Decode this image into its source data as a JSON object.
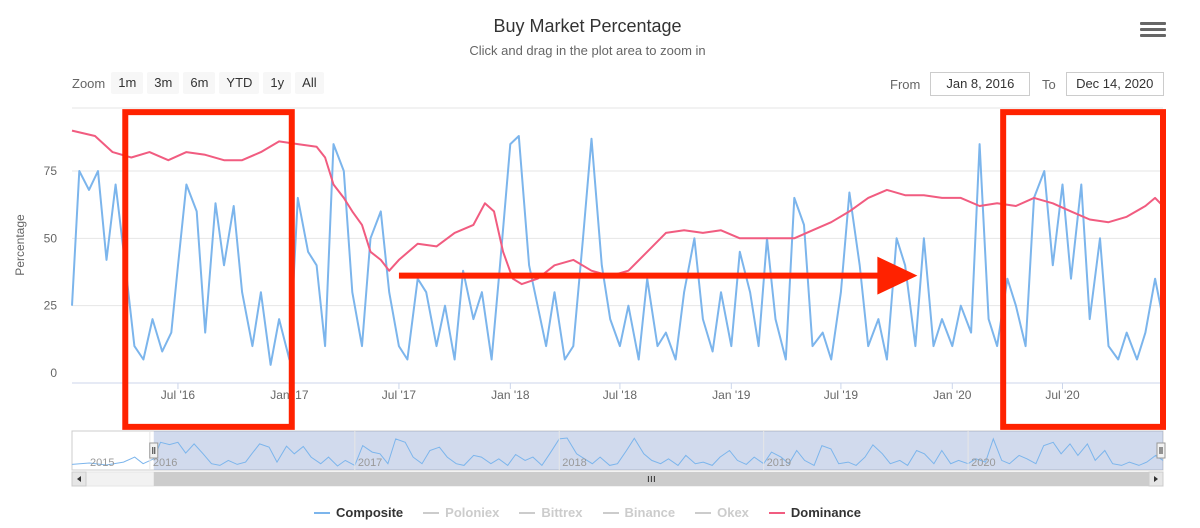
{
  "header": {
    "title": "Buy Market Percentage",
    "subtitle": "Click and drag in the plot area to zoom in"
  },
  "toolbar": {
    "zoom_label": "Zoom",
    "zoom_buttons": [
      "1m",
      "3m",
      "6m",
      "YTD",
      "1y",
      "All"
    ],
    "from_label": "From",
    "from_value": "Jan 8, 2016",
    "to_label": "To",
    "to_value": "Dec 14, 2020"
  },
  "chart_data": {
    "type": "line",
    "title": "Buy Market Percentage",
    "subtitle": "Click and drag in the plot area to zoom in",
    "ylabel": "Percentage",
    "xlabel": "",
    "ylim": [
      0,
      95
    ],
    "yticks": [
      0,
      25,
      50,
      75
    ],
    "xlim": [
      "2016-01-08",
      "2020-12-14"
    ],
    "xticks": [
      {
        "date": "2016-07-01",
        "label": "Jul '16"
      },
      {
        "date": "2017-01-01",
        "label": "Jan '17"
      },
      {
        "date": "2017-07-01",
        "label": "Jul '17"
      },
      {
        "date": "2018-01-01",
        "label": "Jan '18"
      },
      {
        "date": "2018-07-01",
        "label": "Jul '18"
      },
      {
        "date": "2019-01-01",
        "label": "Jan '19"
      },
      {
        "date": "2019-07-01",
        "label": "Jul '19"
      },
      {
        "date": "2020-01-01",
        "label": "Jan '20"
      },
      {
        "date": "2020-07-01",
        "label": "Jul '20"
      }
    ],
    "grid": true,
    "legend_position": "bottom",
    "series": [
      {
        "name": "Composite",
        "color": "#7cb5ec",
        "points": [
          [
            "2016-01-08",
            25
          ],
          [
            "2016-01-20",
            75
          ],
          [
            "2016-02-05",
            68
          ],
          [
            "2016-02-20",
            75
          ],
          [
            "2016-03-05",
            42
          ],
          [
            "2016-03-20",
            70
          ],
          [
            "2016-04-05",
            40
          ],
          [
            "2016-04-20",
            10
          ],
          [
            "2016-05-05",
            5
          ],
          [
            "2016-05-20",
            20
          ],
          [
            "2016-06-05",
            8
          ],
          [
            "2016-06-20",
            15
          ],
          [
            "2016-07-01",
            40
          ],
          [
            "2016-07-15",
            70
          ],
          [
            "2016-08-01",
            60
          ],
          [
            "2016-08-15",
            15
          ],
          [
            "2016-09-01",
            63
          ],
          [
            "2016-09-15",
            40
          ],
          [
            "2016-10-01",
            62
          ],
          [
            "2016-10-15",
            30
          ],
          [
            "2016-11-01",
            10
          ],
          [
            "2016-11-15",
            30
          ],
          [
            "2016-12-01",
            3
          ],
          [
            "2016-12-15",
            20
          ],
          [
            "2017-01-01",
            5
          ],
          [
            "2017-01-15",
            65
          ],
          [
            "2017-02-01",
            45
          ],
          [
            "2017-02-15",
            40
          ],
          [
            "2017-03-01",
            10
          ],
          [
            "2017-03-15",
            85
          ],
          [
            "2017-04-01",
            75
          ],
          [
            "2017-04-15",
            30
          ],
          [
            "2017-05-01",
            10
          ],
          [
            "2017-05-15",
            50
          ],
          [
            "2017-06-01",
            60
          ],
          [
            "2017-06-15",
            30
          ],
          [
            "2017-07-01",
            10
          ],
          [
            "2017-07-15",
            5
          ],
          [
            "2017-08-01",
            35
          ],
          [
            "2017-08-15",
            30
          ],
          [
            "2017-09-01",
            10
          ],
          [
            "2017-09-15",
            25
          ],
          [
            "2017-10-01",
            5
          ],
          [
            "2017-10-15",
            38
          ],
          [
            "2017-11-01",
            20
          ],
          [
            "2017-11-15",
            30
          ],
          [
            "2017-12-01",
            5
          ],
          [
            "2017-12-15",
            40
          ],
          [
            "2018-01-01",
            85
          ],
          [
            "2018-01-15",
            88
          ],
          [
            "2018-02-01",
            40
          ],
          [
            "2018-02-15",
            25
          ],
          [
            "2018-03-01",
            10
          ],
          [
            "2018-03-15",
            30
          ],
          [
            "2018-04-01",
            5
          ],
          [
            "2018-04-15",
            10
          ],
          [
            "2018-05-01",
            50
          ],
          [
            "2018-05-15",
            87
          ],
          [
            "2018-06-01",
            40
          ],
          [
            "2018-06-15",
            20
          ],
          [
            "2018-07-01",
            10
          ],
          [
            "2018-07-15",
            25
          ],
          [
            "2018-08-01",
            5
          ],
          [
            "2018-08-15",
            35
          ],
          [
            "2018-09-01",
            10
          ],
          [
            "2018-09-15",
            15
          ],
          [
            "2018-10-01",
            5
          ],
          [
            "2018-10-15",
            30
          ],
          [
            "2018-11-01",
            50
          ],
          [
            "2018-11-15",
            20
          ],
          [
            "2018-12-01",
            8
          ],
          [
            "2018-12-15",
            30
          ],
          [
            "2019-01-01",
            10
          ],
          [
            "2019-01-15",
            45
          ],
          [
            "2019-02-01",
            30
          ],
          [
            "2019-02-15",
            10
          ],
          [
            "2019-03-01",
            50
          ],
          [
            "2019-03-15",
            20
          ],
          [
            "2019-04-01",
            5
          ],
          [
            "2019-04-15",
            65
          ],
          [
            "2019-05-01",
            55
          ],
          [
            "2019-05-15",
            10
          ],
          [
            "2019-06-01",
            15
          ],
          [
            "2019-06-15",
            5
          ],
          [
            "2019-07-01",
            30
          ],
          [
            "2019-07-15",
            67
          ],
          [
            "2019-08-01",
            40
          ],
          [
            "2019-08-15",
            10
          ],
          [
            "2019-09-01",
            20
          ],
          [
            "2019-09-15",
            5
          ],
          [
            "2019-10-01",
            50
          ],
          [
            "2019-10-15",
            40
          ],
          [
            "2019-11-01",
            10
          ],
          [
            "2019-11-15",
            50
          ],
          [
            "2019-12-01",
            10
          ],
          [
            "2019-12-15",
            20
          ],
          [
            "2020-01-01",
            10
          ],
          [
            "2020-01-15",
            25
          ],
          [
            "2020-02-01",
            15
          ],
          [
            "2020-02-15",
            85
          ],
          [
            "2020-03-01",
            20
          ],
          [
            "2020-03-15",
            10
          ],
          [
            "2020-04-01",
            35
          ],
          [
            "2020-04-15",
            25
          ],
          [
            "2020-05-01",
            10
          ],
          [
            "2020-05-15",
            65
          ],
          [
            "2020-06-01",
            75
          ],
          [
            "2020-06-15",
            40
          ],
          [
            "2020-07-01",
            70
          ],
          [
            "2020-07-15",
            35
          ],
          [
            "2020-08-01",
            70
          ],
          [
            "2020-08-15",
            20
          ],
          [
            "2020-09-01",
            50
          ],
          [
            "2020-09-15",
            10
          ],
          [
            "2020-10-01",
            5
          ],
          [
            "2020-10-15",
            15
          ],
          [
            "2020-11-01",
            5
          ],
          [
            "2020-11-15",
            15
          ],
          [
            "2020-12-01",
            35
          ],
          [
            "2020-12-14",
            20
          ]
        ]
      },
      {
        "name": "Poloniex",
        "color": "#cccccc",
        "hidden": true,
        "points": []
      },
      {
        "name": "Bittrex",
        "color": "#cccccc",
        "hidden": true,
        "points": []
      },
      {
        "name": "Binance",
        "color": "#cccccc",
        "hidden": true,
        "points": []
      },
      {
        "name": "Okex",
        "color": "#cccccc",
        "hidden": true,
        "points": []
      },
      {
        "name": "Dominance",
        "color": "#f15c80",
        "points": [
          [
            "2016-01-08",
            90
          ],
          [
            "2016-02-15",
            88
          ],
          [
            "2016-03-15",
            82
          ],
          [
            "2016-04-15",
            80
          ],
          [
            "2016-05-15",
            82
          ],
          [
            "2016-06-15",
            79
          ],
          [
            "2016-07-15",
            82
          ],
          [
            "2016-08-15",
            81
          ],
          [
            "2016-09-15",
            79
          ],
          [
            "2016-10-15",
            79
          ],
          [
            "2016-11-15",
            82
          ],
          [
            "2016-12-15",
            86
          ],
          [
            "2017-01-15",
            85
          ],
          [
            "2017-02-15",
            84
          ],
          [
            "2017-03-01",
            80
          ],
          [
            "2017-03-15",
            70
          ],
          [
            "2017-04-01",
            65
          ],
          [
            "2017-04-15",
            60
          ],
          [
            "2017-05-01",
            55
          ],
          [
            "2017-05-15",
            45
          ],
          [
            "2017-06-01",
            42
          ],
          [
            "2017-06-15",
            38
          ],
          [
            "2017-07-01",
            42
          ],
          [
            "2017-08-01",
            48
          ],
          [
            "2017-09-01",
            47
          ],
          [
            "2017-10-01",
            52
          ],
          [
            "2017-11-01",
            55
          ],
          [
            "2017-11-20",
            63
          ],
          [
            "2017-12-05",
            60
          ],
          [
            "2017-12-20",
            45
          ],
          [
            "2018-01-05",
            35
          ],
          [
            "2018-01-20",
            33
          ],
          [
            "2018-02-15",
            35
          ],
          [
            "2018-03-15",
            40
          ],
          [
            "2018-04-15",
            42
          ],
          [
            "2018-05-15",
            38
          ],
          [
            "2018-06-15",
            36
          ],
          [
            "2018-07-15",
            38
          ],
          [
            "2018-08-15",
            45
          ],
          [
            "2018-09-15",
            52
          ],
          [
            "2018-10-15",
            53
          ],
          [
            "2018-11-15",
            52
          ],
          [
            "2018-12-15",
            53
          ],
          [
            "2019-01-15",
            50
          ],
          [
            "2019-02-15",
            50
          ],
          [
            "2019-03-15",
            50
          ],
          [
            "2019-04-15",
            50
          ],
          [
            "2019-05-15",
            53
          ],
          [
            "2019-06-15",
            56
          ],
          [
            "2019-07-15",
            60
          ],
          [
            "2019-08-15",
            65
          ],
          [
            "2019-09-15",
            68
          ],
          [
            "2019-10-15",
            66
          ],
          [
            "2019-11-15",
            66
          ],
          [
            "2019-12-15",
            65
          ],
          [
            "2020-01-15",
            65
          ],
          [
            "2020-02-15",
            62
          ],
          [
            "2020-03-15",
            63
          ],
          [
            "2020-04-15",
            62
          ],
          [
            "2020-05-15",
            65
          ],
          [
            "2020-06-15",
            63
          ],
          [
            "2020-07-15",
            60
          ],
          [
            "2020-08-15",
            57
          ],
          [
            "2020-09-15",
            56
          ],
          [
            "2020-10-15",
            58
          ],
          [
            "2020-11-15",
            62
          ],
          [
            "2020-12-01",
            65
          ],
          [
            "2020-12-14",
            62
          ]
        ]
      }
    ],
    "navigator": {
      "year_labels": [
        "2015",
        "2016",
        "2017",
        "2018",
        "2019",
        "2020"
      ],
      "xlim": [
        "2015-08-15",
        "2020-12-14"
      ],
      "selected": [
        "2016-01-08",
        "2020-12-14"
      ]
    },
    "annotations": [
      {
        "type": "box",
        "color": "#ff2200",
        "from": "2016-04-05",
        "to": "2017-01-05",
        "ylim": [
          -20,
          95
        ]
      },
      {
        "type": "box",
        "color": "#ff2200",
        "from": "2020-03-25",
        "to": "2020-12-14",
        "ylim": [
          -20,
          95
        ]
      },
      {
        "type": "arrow",
        "color": "#ff2200",
        "from": [
          "2017-07-01",
          38
        ],
        "to": [
          "2019-11-01",
          38
        ]
      }
    ]
  }
}
